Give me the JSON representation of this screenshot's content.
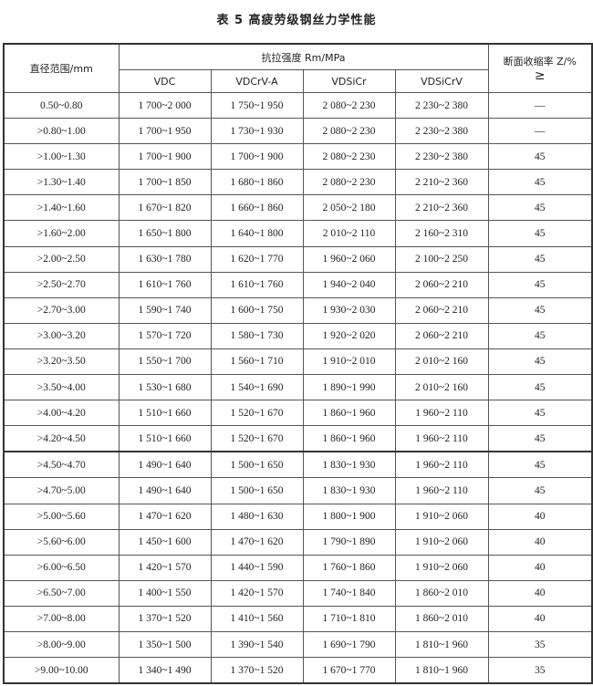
{
  "title": "表 5   高疲劳级钢丝力学性能",
  "table": {
    "header": {
      "diameter": "直径范围/mm",
      "tensile": "抗拉强度 Rm/MPa",
      "reduction": "断面收缩率 Z/%",
      "reduction_sub": "≥",
      "grades": [
        "VDC",
        "VDCrV-A",
        "VDSiCr",
        "VDSiCrV"
      ]
    },
    "rows": [
      [
        "0.50~0.80",
        "1 700~2 000",
        "1 750~1 950",
        "2 080~2 230",
        "2 230~2 380",
        "—"
      ],
      [
        ">0.80~1.00",
        "1 700~1 950",
        "1 730~1 930",
        "2 080~2 230",
        "2 230~2 380",
        "—"
      ],
      [
        ">1.00~1.30",
        "1 700~1 900",
        "1 700~1 900",
        "2 080~2 230",
        "2 230~2 380",
        "45"
      ],
      [
        ">1.30~1.40",
        "1 700~1 850",
        "1 680~1 860",
        "2 080~2 230",
        "2 210~2 360",
        "45"
      ],
      [
        ">1.40~1.60",
        "1 670~1 820",
        "1 660~1 860",
        "2 050~2 180",
        "2 210~2 360",
        "45"
      ],
      [
        ">1.60~2.00",
        "1 650~1 800",
        "1 640~1 800",
        "2 010~2 110",
        "2 160~2 310",
        "45"
      ],
      [
        ">2.00~2.50",
        "1 630~1 780",
        "1 620~1 770",
        "1 960~2 060",
        "2 100~2 250",
        "45"
      ],
      [
        ">2.50~2.70",
        "1 610~1 760",
        "1 610~1 760",
        "1 940~2 040",
        "2 060~2 210",
        "45"
      ],
      [
        ">2.70~3.00",
        "1 590~1 740",
        "1 600~1 750",
        "1 930~2 030",
        "2 060~2 210",
        "45"
      ],
      [
        ">3.00~3.20",
        "1 570~1 720",
        "1 580~1 730",
        "1 920~2 020",
        "2 060~2 210",
        "45"
      ],
      [
        ">3.20~3.50",
        "1 550~1 700",
        "1 560~1 710",
        "1 910~2 010",
        "2 010~2 160",
        "45"
      ],
      [
        ">3.50~4.00",
        "1 530~1 680",
        "1 540~1 690",
        "1 890~1 990",
        "2 010~2 160",
        "45"
      ],
      [
        ">4.00~4.20",
        "1 510~1 660",
        "1 520~1 670",
        "1 860~1 960",
        "1 960~2 110",
        "45"
      ],
      [
        ">4.20~4.50",
        "1 510~1 660",
        "1 520~1 670",
        "1 860~1 960",
        "1 960~2 110",
        "45"
      ],
      [
        ">4.50~4.70",
        "1 490~1 640",
        "1 500~1 650",
        "1 830~1 930",
        "1 960~2 110",
        "45"
      ],
      [
        ">4.70~5.00",
        "1 490~1 640",
        "1 500~1 650",
        "1 830~1 930",
        "1 960~2 110",
        "45"
      ],
      [
        ">5.00~5.60",
        "1 470~1 620",
        "1 480~1 630",
        "1 800~1 900",
        "1 910~2 060",
        "40"
      ],
      [
        ">5.60~6.00",
        "1 450~1 600",
        "1 470~1 620",
        "1 790~1 890",
        "1 910~2 060",
        "40"
      ],
      [
        ">6.00~6.50",
        "1 420~1 570",
        "1 440~1 590",
        "1 760~1 860",
        "1 910~2 060",
        "40"
      ],
      [
        ">6.50~7.00",
        "1 400~1 550",
        "1 420~1 570",
        "1 740~1 840",
        "1 860~2 010",
        "40"
      ],
      [
        ">7.00~8.00",
        "1 370~1 520",
        "1 410~1 560",
        "1 710~1 810",
        "1 860~2 010",
        "40"
      ],
      [
        ">8.00~9.00",
        "1 350~1 500",
        "1 390~1 540",
        "1 690~1 790",
        "1 810~1 960",
        "35"
      ],
      [
        ">9.00~10.00",
        "1 340~1 490",
        "1 370~1 520",
        "1 670~1 770",
        "1 810~1 960",
        "35"
      ]
    ]
  }
}
